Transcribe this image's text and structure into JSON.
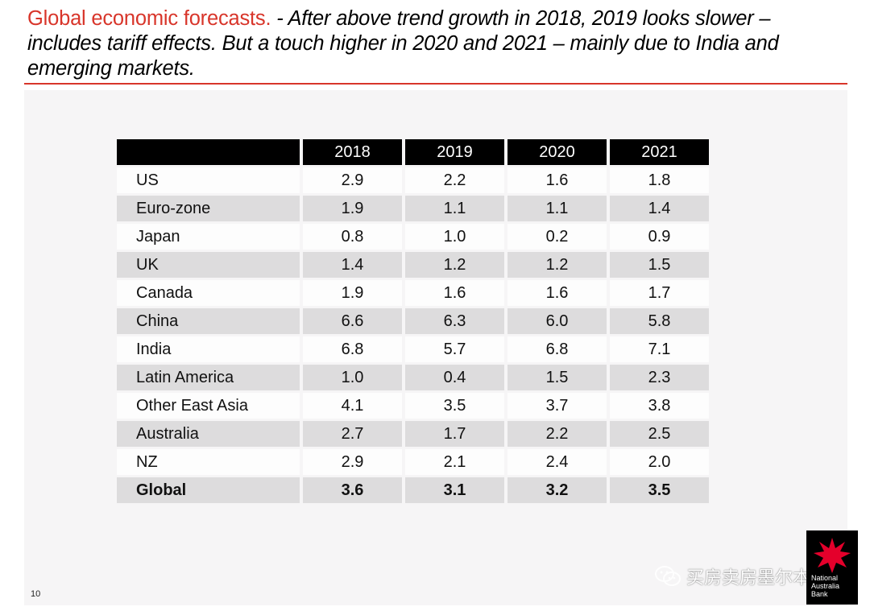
{
  "slide": {
    "title_lead": "Global economic forecasts.",
    "title_rest": "  - After above trend growth in 2018, 2019 looks slower – includes tariff effects.  But a touch higher in 2020 and 2021 – mainly due to India and emerging markets.",
    "page_number": "10"
  },
  "table": {
    "columns": [
      "",
      "2018",
      "2019",
      "2020",
      "2021"
    ],
    "rows": [
      {
        "name": "US",
        "values": [
          "2.9",
          "2.2",
          "1.6",
          "1.8"
        ]
      },
      {
        "name": "Euro-zone",
        "values": [
          "1.9",
          "1.1",
          "1.1",
          "1.4"
        ]
      },
      {
        "name": "Japan",
        "values": [
          "0.8",
          "1.0",
          "0.2",
          "0.9"
        ]
      },
      {
        "name": "UK",
        "values": [
          "1.4",
          "1.2",
          "1.2",
          "1.5"
        ]
      },
      {
        "name": "Canada",
        "values": [
          "1.9",
          "1.6",
          "1.6",
          "1.7"
        ]
      },
      {
        "name": "China",
        "values": [
          "6.6",
          "6.3",
          "6.0",
          "5.8"
        ]
      },
      {
        "name": "India",
        "values": [
          "6.8",
          "5.7",
          "6.8",
          "7.1"
        ]
      },
      {
        "name": "Latin America",
        "values": [
          "1.0",
          "0.4",
          "1.5",
          "2.3"
        ]
      },
      {
        "name": "Other East Asia",
        "values": [
          "4.1",
          "3.5",
          "3.7",
          "3.8"
        ]
      },
      {
        "name": "Australia",
        "values": [
          "2.7",
          "1.7",
          "2.2",
          "2.5"
        ]
      },
      {
        "name": "NZ",
        "values": [
          "2.9",
          "2.1",
          "2.4",
          "2.0"
        ]
      },
      {
        "name": "Global",
        "values": [
          "3.6",
          "3.1",
          "3.2",
          "3.5"
        ]
      }
    ]
  },
  "logo": {
    "icon": "red-star-icon",
    "lines": [
      "National",
      "Australia",
      "Bank"
    ],
    "color": "#e4002b"
  },
  "watermark": {
    "icon": "wechat-icon",
    "text": "买房卖房墨尔本"
  },
  "colors": {
    "accent": "#d8352a",
    "header_bg": "#000000",
    "row_shade": "#dddcdd"
  }
}
